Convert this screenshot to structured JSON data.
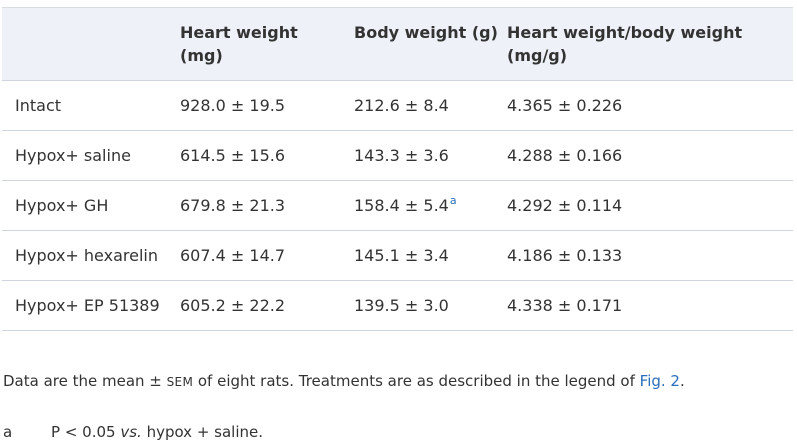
{
  "table": {
    "headers": [
      "",
      "Heart weight (mg)",
      "Body weight (g)",
      "Heart weight/body weight (mg/g)"
    ],
    "rows": [
      {
        "group": "Intact",
        "heart": "928.0 ± 19.5",
        "body": "212.6 ± 8.4",
        "ratio": "4.365 ± 0.226"
      },
      {
        "group": "Hypox+ saline",
        "heart": "614.5 ± 15.6",
        "body": "143.3 ± 3.6",
        "ratio": "4.288 ± 0.166"
      },
      {
        "group": "Hypox+ GH",
        "heart": "679.8 ± 21.3",
        "body": "158.4 ± 5.4",
        "body_marker": "a",
        "ratio": "4.292 ± 0.114"
      },
      {
        "group": "Hypox+ hexarelin",
        "heart": "607.4 ± 14.7",
        "body": "145.1 ± 3.4",
        "ratio": "4.186 ± 0.133"
      },
      {
        "group": "Hypox+ EP 51389",
        "heart": "605.2 ± 22.2",
        "body": "139.5 ± 3.0",
        "ratio": "4.338 ± 0.171"
      }
    ]
  },
  "note": {
    "before": "Data are the mean ± ",
    "sem": "SEM",
    "middle": " of eight rats. Treatments are as described in the legend of ",
    "link": "Fig. 2",
    "after": "."
  },
  "footnote": {
    "label": "a",
    "before": "P < 0.05 ",
    "italic": "vs.",
    "after": " hypox + saline."
  },
  "colors": {
    "header_bg": "#eef2f8",
    "link": "#2a6ebb",
    "text": "#333333",
    "rule": "#cfd5de"
  }
}
